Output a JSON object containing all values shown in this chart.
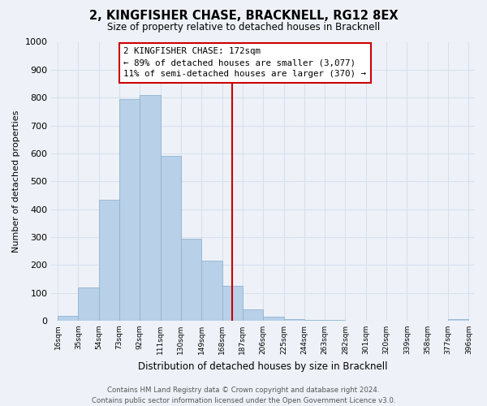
{
  "title": "2, KINGFISHER CHASE, BRACKNELL, RG12 8EX",
  "subtitle": "Size of property relative to detached houses in Bracknell",
  "xlabel": "Distribution of detached houses by size in Bracknell",
  "ylabel": "Number of detached properties",
  "bar_labels": [
    "16sqm",
    "35sqm",
    "54sqm",
    "73sqm",
    "92sqm",
    "111sqm",
    "130sqm",
    "149sqm",
    "168sqm",
    "187sqm",
    "206sqm",
    "225sqm",
    "244sqm",
    "263sqm",
    "282sqm",
    "301sqm",
    "320sqm",
    "339sqm",
    "358sqm",
    "377sqm",
    "396sqm"
  ],
  "bar_values": [
    18,
    120,
    435,
    795,
    810,
    590,
    295,
    215,
    125,
    40,
    13,
    5,
    3,
    2,
    1,
    1,
    0,
    0,
    0,
    5
  ],
  "bar_color": "#b8d0e8",
  "bar_edge_color": "#90b4d0",
  "vline_color": "#cc0000",
  "ylim": [
    0,
    1000
  ],
  "yticks": [
    0,
    100,
    200,
    300,
    400,
    500,
    600,
    700,
    800,
    900,
    1000
  ],
  "annotation_title": "2 KINGFISHER CHASE: 172sqm",
  "annotation_line1": "← 89% of detached houses are smaller (3,077)",
  "annotation_line2": "11% of semi-detached houses are larger (370) →",
  "annotation_box_color": "#ffffff",
  "annotation_box_edge": "#cc0000",
  "footer_line1": "Contains HM Land Registry data © Crown copyright and database right 2024.",
  "footer_line2": "Contains public sector information licensed under the Open Government Licence v3.0.",
  "background_color": "#eef2f8",
  "grid_color": "#d8e0ee"
}
